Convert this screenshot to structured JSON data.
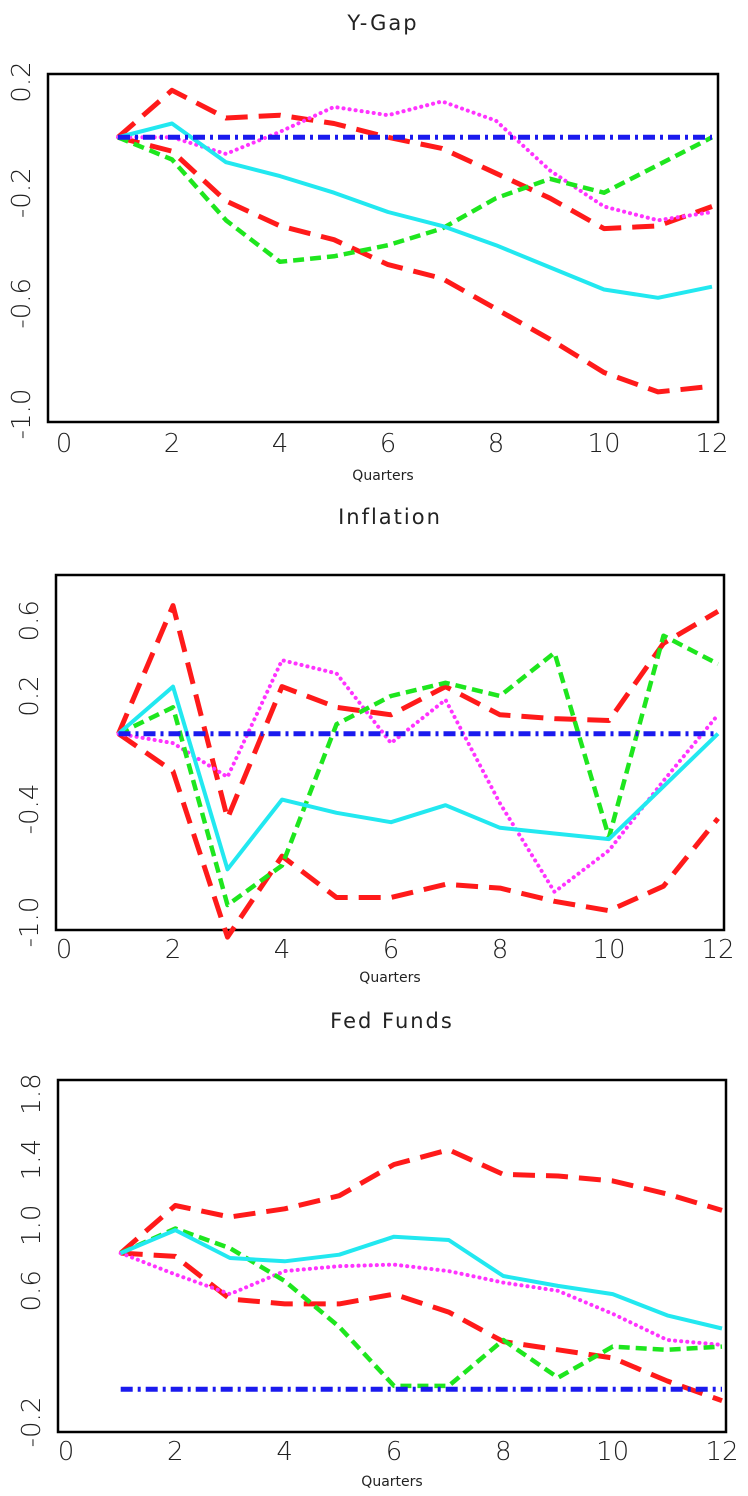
{
  "colors": {
    "red": "#ff1a1a",
    "magenta": "#ff33ff",
    "green": "#1ee61e",
    "cyan": "#22e8f0",
    "blue": "#1a1aee",
    "frame": "#000000"
  },
  "chart_data": [
    {
      "type": "line",
      "title": "Y-Gap",
      "xlabel": "Quarters",
      "ylabel": "",
      "xlim": [
        0,
        12
      ],
      "ylim": [
        -1.0,
        0.2
      ],
      "xticks": [
        0,
        2,
        4,
        6,
        8,
        10,
        12
      ],
      "yticks": [
        -1.0,
        -0.6,
        -0.2,
        0.2
      ],
      "xtick_labels": [
        "0",
        "2",
        "4",
        "6",
        "8",
        "10",
        "12"
      ],
      "ytick_labels": [
        "-1.0",
        "-0.6",
        "-0.2",
        "0.2"
      ],
      "grid": false,
      "x": [
        1,
        2,
        3,
        4,
        5,
        6,
        7,
        8,
        9,
        10,
        11,
        12
      ],
      "series": [
        {
          "color": "red",
          "style": "dashed-long",
          "values": [
            0.0,
            0.17,
            0.07,
            0.08,
            0.05,
            0.0,
            -0.04,
            -0.13,
            -0.22,
            -0.33,
            -0.32,
            -0.25
          ]
        },
        {
          "color": "red",
          "style": "dashed-long",
          "values": [
            0.0,
            -0.05,
            -0.23,
            -0.32,
            -0.37,
            -0.46,
            -0.51,
            -0.62,
            -0.73,
            -0.85,
            -0.92,
            -0.9
          ]
        },
        {
          "color": "magenta",
          "style": "dotted",
          "values": [
            0.0,
            0.0,
            -0.06,
            0.02,
            0.11,
            0.08,
            0.13,
            0.06,
            -0.12,
            -0.25,
            -0.3,
            -0.27
          ]
        },
        {
          "color": "green",
          "style": "dashed",
          "values": [
            0.0,
            -0.08,
            -0.3,
            -0.45,
            -0.43,
            -0.39,
            -0.33,
            -0.22,
            -0.15,
            -0.2,
            -0.1,
            0.0
          ]
        },
        {
          "color": "cyan",
          "style": "solid",
          "values": [
            0.0,
            0.05,
            -0.09,
            -0.14,
            -0.2,
            -0.27,
            -0.32,
            -0.39,
            -0.47,
            -0.55,
            -0.58,
            -0.54
          ]
        },
        {
          "color": "blue",
          "style": "dash-dot",
          "values": [
            0.0,
            0.0,
            0.0,
            0.0,
            0.0,
            0.0,
            0.0,
            0.0,
            0.0,
            0.0,
            0.0,
            0.0
          ]
        }
      ]
    },
    {
      "type": "line",
      "title": "Inflation",
      "xlabel": "Quarters",
      "ylabel": "",
      "xlim": [
        0,
        12
      ],
      "ylim": [
        -1.0,
        0.8
      ],
      "xticks": [
        0,
        2,
        4,
        6,
        8,
        10,
        12
      ],
      "yticks": [
        -1.0,
        -0.4,
        0.2,
        0.6
      ],
      "xtick_labels": [
        "0",
        "2",
        "4",
        "6",
        "8",
        "10",
        "12"
      ],
      "ytick_labels": [
        "-1.0",
        "-0.4",
        "0.2",
        "0.6"
      ],
      "grid": false,
      "x": [
        1,
        2,
        3,
        4,
        5,
        6,
        7,
        8,
        9,
        10,
        11,
        12
      ],
      "series": [
        {
          "color": "red",
          "style": "dashed-long",
          "values": [
            0.0,
            0.68,
            -0.45,
            0.25,
            0.14,
            0.1,
            0.25,
            0.1,
            0.08,
            0.07,
            0.48,
            0.65
          ]
        },
        {
          "color": "red",
          "style": "dashed-long",
          "values": [
            0.0,
            -0.2,
            -1.08,
            -0.65,
            -0.87,
            -0.87,
            -0.8,
            -0.82,
            -0.89,
            -0.94,
            -0.81,
            -0.45
          ]
        },
        {
          "color": "magenta",
          "style": "dotted",
          "values": [
            0.0,
            -0.05,
            -0.23,
            0.39,
            0.32,
            -0.05,
            0.18,
            -0.37,
            -0.84,
            -0.62,
            -0.25,
            0.1
          ]
        },
        {
          "color": "green",
          "style": "dashed",
          "values": [
            0.0,
            0.14,
            -0.91,
            -0.7,
            0.05,
            0.2,
            0.27,
            0.2,
            0.43,
            -0.55,
            0.52,
            0.37
          ]
        },
        {
          "color": "cyan",
          "style": "solid",
          "values": [
            0.0,
            0.25,
            -0.72,
            -0.35,
            -0.42,
            -0.47,
            -0.38,
            -0.5,
            -0.53,
            -0.56,
            -0.28,
            0.0
          ]
        },
        {
          "color": "blue",
          "style": "dash-dot",
          "values": [
            0.0,
            0.0,
            0.0,
            0.0,
            0.0,
            0.0,
            0.0,
            0.0,
            0.0,
            0.0,
            0.0,
            0.0
          ]
        }
      ]
    },
    {
      "type": "line",
      "title": "Fed Funds",
      "xlabel": "Quarters",
      "ylabel": "",
      "xlim": [
        0,
        12
      ],
      "ylim": [
        -0.2,
        1.8
      ],
      "xticks": [
        0,
        2,
        4,
        6,
        8,
        10,
        12
      ],
      "yticks": [
        -0.2,
        0.6,
        1.0,
        1.4,
        1.8
      ],
      "xtick_labels": [
        "0",
        "2",
        "4",
        "6",
        "8",
        "10",
        "12"
      ],
      "ytick_labels": [
        "-0.2",
        "0.6",
        "1.0",
        "1.4",
        "1.8"
      ],
      "grid": false,
      "x": [
        1,
        2,
        3,
        4,
        5,
        6,
        7,
        8,
        9,
        10,
        11,
        12
      ],
      "series": [
        {
          "color": "red",
          "style": "dashed-long",
          "values": [
            0.83,
            1.12,
            1.05,
            1.1,
            1.18,
            1.37,
            1.46,
            1.31,
            1.3,
            1.27,
            1.19,
            1.09
          ]
        },
        {
          "color": "red",
          "style": "dashed-long",
          "values": [
            0.83,
            0.81,
            0.55,
            0.52,
            0.52,
            0.58,
            0.47,
            0.29,
            0.24,
            0.19,
            0.05,
            -0.07
          ]
        },
        {
          "color": "magenta",
          "style": "dotted",
          "values": [
            0.83,
            0.7,
            0.58,
            0.72,
            0.75,
            0.76,
            0.72,
            0.65,
            0.6,
            0.46,
            0.3,
            0.27
          ]
        },
        {
          "color": "green",
          "style": "dashed",
          "values": [
            0.83,
            0.98,
            0.86,
            0.66,
            0.38,
            0.02,
            0.02,
            0.3,
            0.07,
            0.26,
            0.24,
            0.26
          ]
        },
        {
          "color": "cyan",
          "style": "solid",
          "values": [
            0.83,
            0.97,
            0.8,
            0.78,
            0.82,
            0.93,
            0.91,
            0.69,
            0.63,
            0.58,
            0.45,
            0.37
          ]
        },
        {
          "color": "blue",
          "style": "dash-dot",
          "values": [
            0.0,
            0.0,
            0.0,
            0.0,
            0.0,
            0.0,
            0.0,
            0.0,
            0.0,
            0.0,
            0.0,
            0.0
          ]
        }
      ]
    }
  ]
}
